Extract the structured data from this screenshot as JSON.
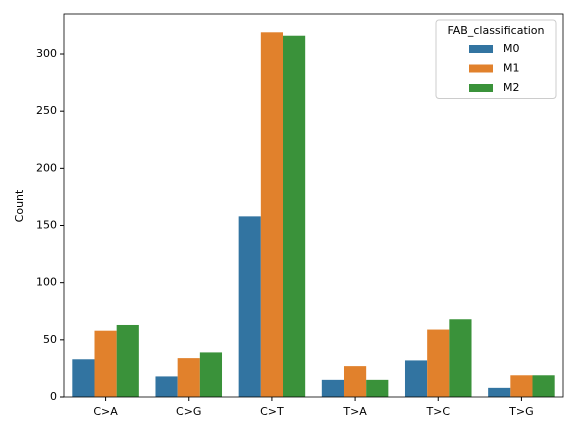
{
  "chart_data": {
    "type": "bar",
    "y_label": "Count",
    "categories": [
      "C>A",
      "C>G",
      "C>T",
      "T>A",
      "T>C",
      "T>G"
    ],
    "series": [
      {
        "name": "M0",
        "color": "#3274a1",
        "values": [
          33,
          18,
          158,
          15,
          32,
          8
        ]
      },
      {
        "name": "M1",
        "color": "#e1812c",
        "values": [
          58,
          34,
          319,
          27,
          59,
          19
        ]
      },
      {
        "name": "M2",
        "color": "#3a923a",
        "values": [
          63,
          39,
          316,
          15,
          68,
          19
        ]
      }
    ],
    "ylim": [
      0,
      335
    ],
    "yticks": [
      0,
      50,
      100,
      150,
      200,
      250,
      300
    ],
    "legend_title": "FAB_classification",
    "legend_position": "upper right",
    "grid": false
  }
}
